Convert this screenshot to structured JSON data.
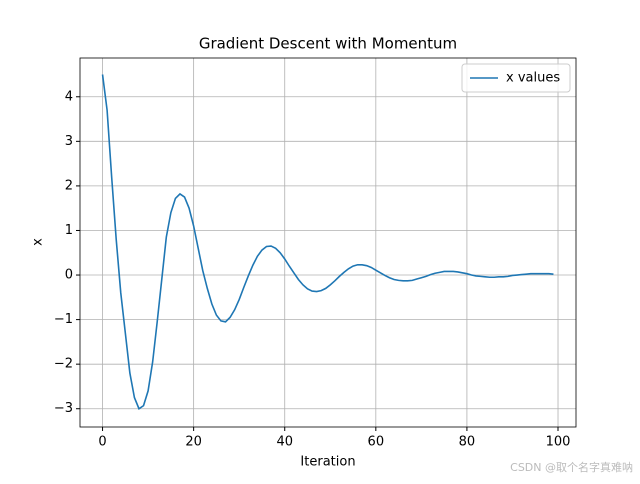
{
  "chart_data": {
    "type": "line",
    "title": "Gradient Descent with Momentum",
    "xlabel": "Iteration",
    "ylabel": "x",
    "x": [
      0,
      1,
      2,
      3,
      4,
      5,
      6,
      7,
      8,
      9,
      10,
      11,
      12,
      13,
      14,
      15,
      16,
      17,
      18,
      19,
      20,
      21,
      22,
      23,
      24,
      25,
      26,
      27,
      28,
      29,
      30,
      31,
      32,
      33,
      34,
      35,
      36,
      37,
      38,
      39,
      40,
      41,
      42,
      43,
      44,
      45,
      46,
      47,
      48,
      49,
      50,
      51,
      52,
      53,
      54,
      55,
      56,
      57,
      58,
      59,
      60,
      61,
      62,
      63,
      64,
      65,
      66,
      67,
      68,
      69,
      70,
      71,
      72,
      73,
      74,
      75,
      76,
      77,
      78,
      79,
      80,
      81,
      82,
      83,
      84,
      85,
      86,
      87,
      88,
      89,
      90,
      91,
      92,
      93,
      94,
      95,
      96,
      97,
      98,
      99
    ],
    "series": [
      {
        "name": "x values",
        "color": "#1f77b4",
        "values": [
          4.5,
          3.7,
          2.2,
          0.8,
          -0.4,
          -1.3,
          -2.2,
          -2.75,
          -3.0,
          -2.93,
          -2.6,
          -1.95,
          -1.05,
          -0.1,
          0.85,
          1.4,
          1.72,
          1.82,
          1.75,
          1.5,
          1.1,
          0.6,
          0.1,
          -0.3,
          -0.65,
          -0.9,
          -1.03,
          -1.05,
          -0.95,
          -0.78,
          -0.55,
          -0.28,
          -0.02,
          0.22,
          0.42,
          0.56,
          0.64,
          0.65,
          0.6,
          0.5,
          0.36,
          0.2,
          0.05,
          -0.1,
          -0.22,
          -0.31,
          -0.36,
          -0.37,
          -0.35,
          -0.3,
          -0.22,
          -0.13,
          -0.03,
          0.06,
          0.14,
          0.2,
          0.23,
          0.23,
          0.21,
          0.17,
          0.11,
          0.05,
          -0.01,
          -0.06,
          -0.1,
          -0.12,
          -0.13,
          -0.13,
          -0.12,
          -0.09,
          -0.06,
          -0.03,
          0.01,
          0.04,
          0.06,
          0.08,
          0.08,
          0.08,
          0.07,
          0.05,
          0.03,
          0.0,
          -0.02,
          -0.03,
          -0.04,
          -0.05,
          -0.05,
          -0.04,
          -0.04,
          -0.03,
          -0.01,
          0.0,
          0.01,
          0.02,
          0.03,
          0.03,
          0.03,
          0.03,
          0.03,
          0.02
        ]
      }
    ],
    "xlim": [
      -4.95,
      103.95
    ],
    "xticks": [
      0,
      20,
      40,
      60,
      80,
      100
    ],
    "ylim": [
      -3.41,
      4.87
    ],
    "yticks": [
      {
        "value": -3,
        "label": "−3"
      },
      {
        "value": -2,
        "label": "−2"
      },
      {
        "value": -1,
        "label": "−1"
      },
      0,
      1,
      2,
      3,
      4
    ],
    "grid": true,
    "legend": "upper right",
    "watermark": "CSDN @取个名字真难呐"
  }
}
